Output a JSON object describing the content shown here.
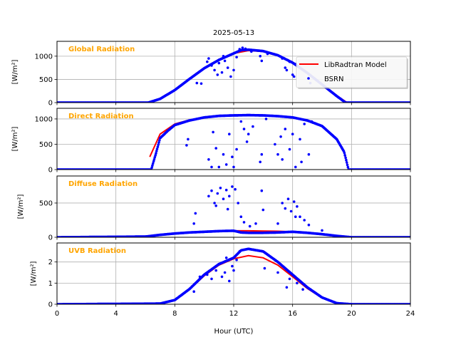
{
  "chart_data": {
    "type": "scatter",
    "title": "2025-05-13",
    "xlabel": "Hour (UTC)",
    "xlim": [
      0,
      24
    ],
    "xticks": [
      0,
      4,
      8,
      12,
      16,
      20,
      24
    ],
    "grid": true,
    "legend": {
      "placement": "top-right (first panel)",
      "entries": [
        {
          "label": "LibRadtran Model",
          "color": "#ff0000",
          "style": "line"
        },
        {
          "label": "BSRN",
          "color": "#0000ff",
          "style": "dot"
        }
      ]
    },
    "panels": [
      {
        "title": "Global Radiation",
        "ylabel": "[W/m²]",
        "ylim": [
          0,
          1320
        ],
        "yticks": [
          0,
          500,
          1000
        ],
        "model": [
          [
            6.3,
            0
          ],
          [
            7,
            90
          ],
          [
            8,
            280
          ],
          [
            9,
            520
          ],
          [
            10,
            750
          ],
          [
            11,
            930
          ],
          [
            12,
            1060
          ],
          [
            13,
            1120
          ],
          [
            14,
            1100
          ],
          [
            15,
            1010
          ],
          [
            16,
            850
          ],
          [
            17,
            640
          ],
          [
            18,
            400
          ],
          [
            19,
            150
          ],
          [
            19.7,
            0
          ]
        ],
        "bsrn_clear": [
          [
            0,
            0
          ],
          [
            6.2,
            0
          ],
          [
            7,
            80
          ],
          [
            8,
            270
          ],
          [
            9,
            510
          ],
          [
            10,
            740
          ],
          [
            11,
            920
          ],
          [
            12,
            1060
          ],
          [
            12.5,
            1130
          ],
          [
            13,
            1140
          ],
          [
            14,
            1110
          ],
          [
            15,
            1020
          ],
          [
            16,
            860
          ],
          [
            17,
            640
          ],
          [
            18,
            390
          ],
          [
            19,
            140
          ],
          [
            19.6,
            0
          ],
          [
            24,
            0
          ]
        ],
        "bsrn_points": [
          [
            9.5,
            420
          ],
          [
            9.8,
            410
          ],
          [
            10.3,
            950
          ],
          [
            10.5,
            800
          ],
          [
            10.7,
            700
          ],
          [
            10.9,
            600
          ],
          [
            11.0,
            850
          ],
          [
            11.2,
            650
          ],
          [
            11.4,
            900
          ],
          [
            11.6,
            750
          ],
          [
            11.8,
            560
          ],
          [
            12.0,
            700
          ],
          [
            12.2,
            980
          ],
          [
            12.4,
            1150
          ],
          [
            12.6,
            1180
          ],
          [
            13.2,
            1100
          ],
          [
            13.8,
            1000
          ],
          [
            13.9,
            900
          ],
          [
            14.3,
            1050
          ],
          [
            15.3,
            950
          ],
          [
            15.5,
            750
          ],
          [
            15.6,
            700
          ],
          [
            15.8,
            880
          ],
          [
            16.0,
            600
          ],
          [
            16.2,
            830
          ],
          [
            17.2,
            420
          ],
          [
            11.3,
            1000
          ],
          [
            10.2,
            880
          ],
          [
            12.8,
            1160
          ],
          [
            16.1,
            560
          ]
        ]
      },
      {
        "title": "Direct Radiation",
        "ylabel": "[W/m²]",
        "ylim": [
          0,
          1210
        ],
        "yticks": [
          0,
          500,
          1000
        ],
        "model": [
          [
            6.3,
            250
          ],
          [
            7,
            700
          ],
          [
            8,
            900
          ],
          [
            9,
            980
          ],
          [
            10,
            1030
          ],
          [
            11,
            1060
          ],
          [
            12,
            1070
          ],
          [
            13,
            1075
          ],
          [
            14,
            1070
          ],
          [
            15,
            1055
          ],
          [
            16,
            1030
          ],
          [
            17,
            970
          ],
          [
            18,
            860
          ],
          [
            19,
            600
          ],
          [
            19.5,
            350
          ],
          [
            19.8,
            0
          ]
        ],
        "bsrn_clear": [
          [
            0,
            0
          ],
          [
            6.4,
            0
          ],
          [
            6.7,
            300
          ],
          [
            7,
            620
          ],
          [
            7.5,
            760
          ],
          [
            8,
            880
          ],
          [
            9,
            970
          ],
          [
            10,
            1030
          ],
          [
            11,
            1060
          ],
          [
            12,
            1070
          ],
          [
            13,
            1075
          ],
          [
            14,
            1070
          ],
          [
            15,
            1055
          ],
          [
            16,
            1030
          ],
          [
            17,
            970
          ],
          [
            18,
            860
          ],
          [
            19,
            600
          ],
          [
            19.5,
            350
          ],
          [
            19.8,
            0
          ],
          [
            24,
            0
          ]
        ],
        "bsrn_points": [
          [
            8.8,
            480
          ],
          [
            8.9,
            600
          ],
          [
            10.5,
            50
          ],
          [
            10.6,
            740
          ],
          [
            10.8,
            420
          ],
          [
            11.0,
            50
          ],
          [
            11.3,
            300
          ],
          [
            11.5,
            100
          ],
          [
            11.7,
            700
          ],
          [
            12.0,
            50
          ],
          [
            12.2,
            400
          ],
          [
            12.5,
            950
          ],
          [
            12.7,
            800
          ],
          [
            13.0,
            700
          ],
          [
            13.3,
            850
          ],
          [
            13.8,
            150
          ],
          [
            13.9,
            300
          ],
          [
            14.2,
            1000
          ],
          [
            14.8,
            500
          ],
          [
            15.0,
            300
          ],
          [
            15.3,
            200
          ],
          [
            15.5,
            800
          ],
          [
            15.8,
            400
          ],
          [
            16.0,
            700
          ],
          [
            16.2,
            50
          ],
          [
            16.5,
            600
          ],
          [
            16.8,
            900
          ],
          [
            17.1,
            300
          ],
          [
            17.3,
            950
          ],
          [
            11.9,
            250
          ],
          [
            12.9,
            550
          ],
          [
            15.2,
            650
          ],
          [
            16.6,
            150
          ],
          [
            10.3,
            200
          ]
        ]
      },
      {
        "title": "Diffuse Radiation",
        "ylabel": "[W/m²]",
        "ylim": [
          0,
          895
        ],
        "yticks": [
          0,
          500
        ],
        "model": [
          [
            6,
            10
          ],
          [
            7,
            35
          ],
          [
            8,
            55
          ],
          [
            9,
            70
          ],
          [
            10,
            80
          ],
          [
            11,
            90
          ],
          [
            12,
            95
          ],
          [
            13,
            95
          ],
          [
            14,
            92
          ],
          [
            15,
            88
          ],
          [
            16,
            80
          ],
          [
            17,
            65
          ],
          [
            18,
            45
          ],
          [
            19,
            20
          ],
          [
            20,
            0
          ]
        ],
        "bsrn_clear": [
          [
            0,
            0
          ],
          [
            6,
            10
          ],
          [
            7,
            35
          ],
          [
            8,
            55
          ],
          [
            9,
            70
          ],
          [
            10,
            80
          ],
          [
            11,
            90
          ],
          [
            12,
            95
          ],
          [
            12.5,
            70
          ],
          [
            13,
            65
          ],
          [
            14,
            65
          ],
          [
            15,
            70
          ],
          [
            16,
            80
          ],
          [
            17,
            65
          ],
          [
            18,
            45
          ],
          [
            19,
            20
          ],
          [
            20,
            0
          ],
          [
            24,
            0
          ]
        ],
        "bsrn_points": [
          [
            9.3,
            200
          ],
          [
            9.4,
            350
          ],
          [
            10.3,
            600
          ],
          [
            10.5,
            680
          ],
          [
            10.7,
            500
          ],
          [
            10.9,
            640
          ],
          [
            11.1,
            720
          ],
          [
            11.3,
            560
          ],
          [
            11.5,
            690
          ],
          [
            11.7,
            600
          ],
          [
            11.9,
            740
          ],
          [
            12.1,
            700
          ],
          [
            12.3,
            500
          ],
          [
            12.5,
            300
          ],
          [
            12.7,
            220
          ],
          [
            13.1,
            160
          ],
          [
            13.5,
            200
          ],
          [
            13.9,
            680
          ],
          [
            14.0,
            400
          ],
          [
            15.0,
            200
          ],
          [
            15.3,
            500
          ],
          [
            15.5,
            420
          ],
          [
            15.7,
            560
          ],
          [
            15.9,
            380
          ],
          [
            16.1,
            520
          ],
          [
            16.3,
            450
          ],
          [
            16.5,
            300
          ],
          [
            16.8,
            250
          ],
          [
            17.1,
            180
          ],
          [
            18.0,
            100
          ],
          [
            10.8,
            460
          ],
          [
            11.6,
            410
          ],
          [
            16.2,
            300
          ]
        ]
      },
      {
        "title": "UVB Radiation",
        "ylabel": "[W/m²]",
        "ylim": [
          0,
          2.9
        ],
        "yticks": [
          0,
          1,
          2
        ],
        "model": [
          [
            7,
            0.03
          ],
          [
            8,
            0.2
          ],
          [
            9,
            0.7
          ],
          [
            10,
            1.35
          ],
          [
            11,
            1.85
          ],
          [
            12,
            2.15
          ],
          [
            13,
            2.3
          ],
          [
            14,
            2.2
          ],
          [
            15,
            1.85
          ],
          [
            16,
            1.3
          ],
          [
            17,
            0.75
          ],
          [
            18,
            0.3
          ],
          [
            19,
            0.05
          ],
          [
            20,
            0
          ]
        ],
        "bsrn_clear": [
          [
            0,
            0
          ],
          [
            7,
            0.03
          ],
          [
            8,
            0.2
          ],
          [
            9,
            0.72
          ],
          [
            10,
            1.4
          ],
          [
            11,
            1.9
          ],
          [
            12,
            2.2
          ],
          [
            12.5,
            2.55
          ],
          [
            13,
            2.62
          ],
          [
            14,
            2.5
          ],
          [
            15,
            2.0
          ],
          [
            16,
            1.4
          ],
          [
            17,
            0.8
          ],
          [
            18,
            0.32
          ],
          [
            19,
            0.05
          ],
          [
            20,
            0
          ],
          [
            24,
            0
          ]
        ],
        "bsrn_points": [
          [
            9.7,
            1.3
          ],
          [
            10.2,
            1.4
          ],
          [
            10.5,
            1.2
          ],
          [
            10.8,
            1.6
          ],
          [
            11.0,
            1.9
          ],
          [
            11.2,
            1.3
          ],
          [
            11.5,
            2.2
          ],
          [
            11.7,
            1.1
          ],
          [
            11.9,
            1.8
          ],
          [
            12.2,
            2.1
          ],
          [
            12.4,
            2.5
          ],
          [
            14.1,
            1.7
          ],
          [
            15.0,
            1.5
          ],
          [
            15.6,
            0.8
          ],
          [
            15.8,
            1.2
          ],
          [
            16.3,
            1.0
          ],
          [
            16.7,
            0.7
          ],
          [
            9.3,
            0.6
          ],
          [
            11.4,
            1.5
          ],
          [
            12.0,
            1.6
          ]
        ]
      }
    ]
  }
}
